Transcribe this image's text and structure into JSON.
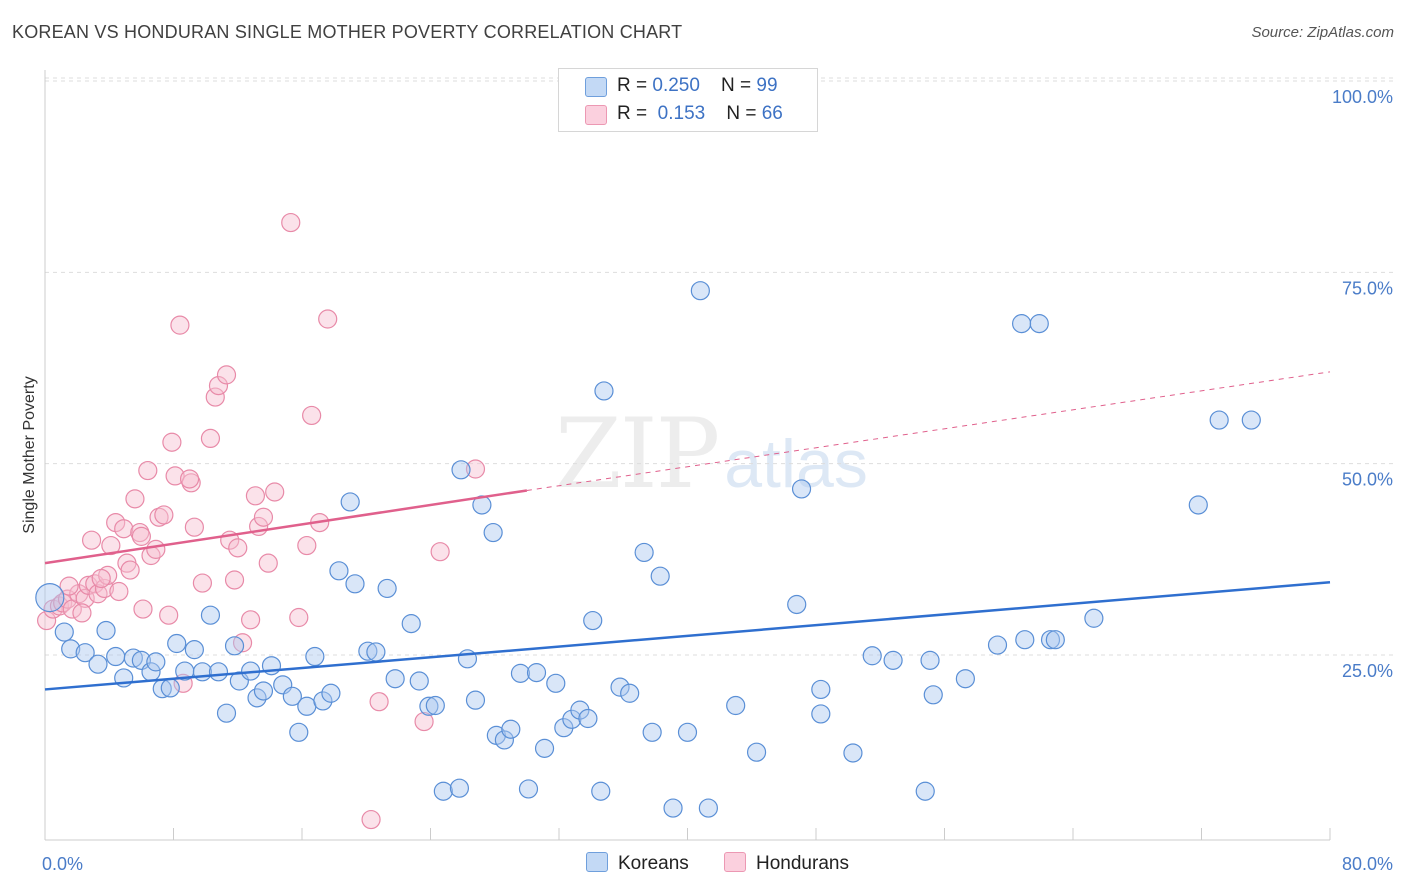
{
  "title": "KOREAN VS HONDURAN SINGLE MOTHER POVERTY CORRELATION CHART",
  "source": "Source: ZipAtlas.com",
  "watermark": {
    "zip": "ZIP",
    "atlas": "atlas"
  },
  "colors": {
    "koreans_fill": "#aac8f0",
    "koreans_stroke": "#5a8fd6",
    "koreans_line": "#2f6fcf",
    "hondurans_fill": "#f7bfd0",
    "hondurans_stroke": "#e88aa8",
    "hondurans_line": "#e0608c",
    "grid": "#dddddd",
    "axis_text": "#4a7cc8"
  },
  "legend": {
    "row1": {
      "r_label": "R = ",
      "r_value": "0.250",
      "n_label": "N = ",
      "n_value": "99"
    },
    "row2": {
      "r_label": "R = ",
      "r_value": "0.153",
      "n_label": "N = ",
      "n_value": "66"
    }
  },
  "chart_data": {
    "type": "scatter",
    "ylabel": "Single Mother Poverty",
    "xlim": [
      0,
      80
    ],
    "ylim": [
      0,
      105
    ],
    "x_tick_labels": [
      {
        "value": 0,
        "label": "0.0%"
      },
      {
        "value": 80,
        "label": "80.0%"
      }
    ],
    "y_tick_labels": [
      {
        "value": 25,
        "label": "25.0%"
      },
      {
        "value": 50,
        "label": "50.0%"
      },
      {
        "value": 75,
        "label": "75.0%"
      },
      {
        "value": 100,
        "label": "100.0%"
      }
    ],
    "grid": true,
    "legend_position": "top-center",
    "series": [
      {
        "name": "Koreans",
        "r": 0.25,
        "n": 99,
        "trend": {
          "x": [
            0,
            80
          ],
          "y": [
            20.5,
            34.5
          ]
        },
        "points": [
          [
            0.3,
            32.5
          ],
          [
            1.2,
            28
          ],
          [
            1.6,
            25.8
          ],
          [
            2.5,
            25.3
          ],
          [
            3.3,
            23.8
          ],
          [
            3.8,
            28.2
          ],
          [
            4.4,
            24.8
          ],
          [
            4.9,
            22
          ],
          [
            5.5,
            24.6
          ],
          [
            6.0,
            24.3
          ],
          [
            6.6,
            22.8
          ],
          [
            6.9,
            24.1
          ],
          [
            7.3,
            20.6
          ],
          [
            7.8,
            20.7
          ],
          [
            8.2,
            26.5
          ],
          [
            8.7,
            22.9
          ],
          [
            9.3,
            25.7
          ],
          [
            9.8,
            22.8
          ],
          [
            10.3,
            30.2
          ],
          [
            10.8,
            22.8
          ],
          [
            11.3,
            17.4
          ],
          [
            11.8,
            26.2
          ],
          [
            12.1,
            21.6
          ],
          [
            12.8,
            22.9
          ],
          [
            13.2,
            19.4
          ],
          [
            13.6,
            20.3
          ],
          [
            14.1,
            23.6
          ],
          [
            14.8,
            21.1
          ],
          [
            15.4,
            19.6
          ],
          [
            15.8,
            14.9
          ],
          [
            16.3,
            18.3
          ],
          [
            16.8,
            24.8
          ],
          [
            17.3,
            19
          ],
          [
            17.8,
            20
          ],
          [
            18.3,
            36
          ],
          [
            19.0,
            45
          ],
          [
            19.3,
            34.3
          ],
          [
            20.1,
            25.5
          ],
          [
            20.6,
            25.4
          ],
          [
            21.3,
            33.7
          ],
          [
            21.8,
            21.9
          ],
          [
            22.8,
            29.1
          ],
          [
            23.3,
            21.6
          ],
          [
            23.9,
            18.3
          ],
          [
            24.3,
            18.4
          ],
          [
            24.8,
            7.2
          ],
          [
            25.8,
            7.6
          ],
          [
            25.9,
            49.2
          ],
          [
            26.3,
            24.5
          ],
          [
            26.8,
            19.1
          ],
          [
            27.2,
            44.6
          ],
          [
            27.9,
            41
          ],
          [
            28.1,
            14.5
          ],
          [
            28.6,
            13.9
          ],
          [
            29.0,
            15.3
          ],
          [
            29.6,
            22.6
          ],
          [
            30.1,
            7.5
          ],
          [
            30.6,
            22.7
          ],
          [
            31.1,
            12.8
          ],
          [
            31.8,
            21.3
          ],
          [
            32.3,
            15.5
          ],
          [
            32.8,
            16.6
          ],
          [
            33.3,
            17.8
          ],
          [
            33.8,
            16.7
          ],
          [
            34.1,
            29.5
          ],
          [
            34.6,
            7.2
          ],
          [
            34.8,
            59.5
          ],
          [
            35.8,
            20.8
          ],
          [
            36.4,
            20
          ],
          [
            37.3,
            38.4
          ],
          [
            37.8,
            14.9
          ],
          [
            38.3,
            35.3
          ],
          [
            39.1,
            5
          ],
          [
            40.0,
            14.9
          ],
          [
            40.8,
            72.6
          ],
          [
            41.3,
            5
          ],
          [
            43.0,
            18.4
          ],
          [
            44.3,
            12.3
          ],
          [
            46.8,
            31.6
          ],
          [
            47.1,
            46.7
          ],
          [
            48.3,
            17.3
          ],
          [
            48.3,
            20.5
          ],
          [
            50.3,
            12.2
          ],
          [
            51.5,
            24.9
          ],
          [
            52.8,
            24.3
          ],
          [
            54.8,
            7.2
          ],
          [
            55.1,
            24.3
          ],
          [
            55.3,
            19.8
          ],
          [
            57.3,
            21.9
          ],
          [
            59.3,
            26.3
          ],
          [
            60.8,
            68.3
          ],
          [
            61.9,
            68.3
          ],
          [
            62.6,
            27
          ],
          [
            62.9,
            27
          ],
          [
            65.3,
            29.8
          ],
          [
            71.8,
            44.6
          ],
          [
            73.1,
            55.7
          ],
          [
            75.1,
            55.7
          ],
          [
            61.0,
            27.0
          ]
        ]
      },
      {
        "name": "Hondurans",
        "r": 0.153,
        "n": 66,
        "trend": {
          "x": [
            0,
            30
          ],
          "y": [
            37,
            46.5
          ]
        },
        "trend_dashed": {
          "x": [
            30,
            80
          ],
          "y": [
            46.5,
            62
          ]
        },
        "points": [
          [
            0.1,
            29.5
          ],
          [
            0.5,
            31
          ],
          [
            0.9,
            31.4
          ],
          [
            1.1,
            31.8
          ],
          [
            1.4,
            32.3
          ],
          [
            1.7,
            31
          ],
          [
            2.1,
            33
          ],
          [
            2.5,
            32.4
          ],
          [
            2.7,
            34.1
          ],
          [
            2.9,
            40
          ],
          [
            3.1,
            34.3
          ],
          [
            3.3,
            33
          ],
          [
            3.7,
            33.7
          ],
          [
            3.9,
            35.4
          ],
          [
            4.1,
            39.3
          ],
          [
            4.4,
            42.3
          ],
          [
            4.6,
            33.3
          ],
          [
            4.9,
            41.5
          ],
          [
            5.1,
            37
          ],
          [
            5.3,
            36.1
          ],
          [
            5.6,
            45.4
          ],
          [
            5.9,
            41
          ],
          [
            6.1,
            31
          ],
          [
            6.4,
            49.1
          ],
          [
            6.6,
            38
          ],
          [
            6.9,
            38.8
          ],
          [
            7.1,
            43
          ],
          [
            7.4,
            43.3
          ],
          [
            7.7,
            30.2
          ],
          [
            7.9,
            52.8
          ],
          [
            8.1,
            48.4
          ],
          [
            8.4,
            68.1
          ],
          [
            8.6,
            21.3
          ],
          [
            9.1,
            47.5
          ],
          [
            9.3,
            41.7
          ],
          [
            9.8,
            34.4
          ],
          [
            10.3,
            53.3
          ],
          [
            10.6,
            58.7
          ],
          [
            10.8,
            60.2
          ],
          [
            11.3,
            61.6
          ],
          [
            11.5,
            40
          ],
          [
            11.8,
            34.8
          ],
          [
            12.3,
            26.6
          ],
          [
            12.8,
            29.6
          ],
          [
            13.1,
            45.8
          ],
          [
            13.3,
            41.8
          ],
          [
            13.6,
            43
          ],
          [
            13.9,
            37
          ],
          [
            14.3,
            46.3
          ],
          [
            15.3,
            81.5
          ],
          [
            15.8,
            29.9
          ],
          [
            16.3,
            39.3
          ],
          [
            16.6,
            56.3
          ],
          [
            17.1,
            42.3
          ],
          [
            17.6,
            68.9
          ],
          [
            20.3,
            3.5
          ],
          [
            20.8,
            18.9
          ],
          [
            23.6,
            16.3
          ],
          [
            24.6,
            38.5
          ],
          [
            26.8,
            49.3
          ],
          [
            1.5,
            34.0
          ],
          [
            3.5,
            35.0
          ],
          [
            6.0,
            40.5
          ],
          [
            9.0,
            48.0
          ],
          [
            12.0,
            39.0
          ],
          [
            2.3,
            30.5
          ]
        ]
      }
    ]
  }
}
